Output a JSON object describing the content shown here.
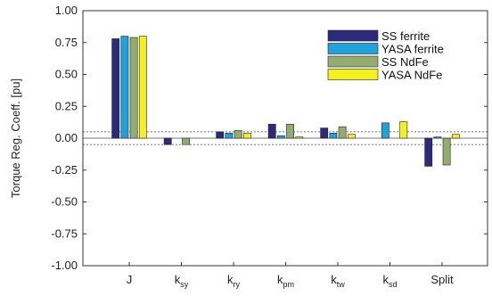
{
  "chart_data": {
    "type": "bar",
    "ylabel": "Torque Reg. Coeff. [pu]",
    "xlabel": "",
    "ylim": [
      -1.0,
      1.0
    ],
    "yticks": [
      "-1.00",
      "-0.75",
      "-0.50",
      "-0.25",
      "0.00",
      "0.25",
      "0.50",
      "0.75",
      "1.00"
    ],
    "categories": [
      {
        "base": "J",
        "sub": ""
      },
      {
        "base": "k",
        "sub": "sy"
      },
      {
        "base": "k",
        "sub": "ry"
      },
      {
        "base": "k",
        "sub": "pm"
      },
      {
        "base": "k",
        "sub": "tw"
      },
      {
        "base": "k",
        "sub": "sd"
      },
      {
        "base": "Split",
        "sub": ""
      }
    ],
    "reference_lines": [
      0.05,
      -0.05
    ],
    "grid": false,
    "legend_position": "top-right",
    "series": [
      {
        "name": "SS ferrite",
        "color": "#2b2a7d",
        "values": [
          0.78,
          -0.05,
          0.05,
          0.11,
          0.08,
          0.0,
          -0.22
        ]
      },
      {
        "name": "YASA ferrite",
        "color": "#1fa3dc",
        "values": [
          0.8,
          0.0,
          0.04,
          0.02,
          0.04,
          0.12,
          0.01
        ]
      },
      {
        "name": "SS NdFe",
        "color": "#93ad70",
        "values": [
          0.79,
          -0.05,
          0.06,
          0.11,
          0.09,
          0.0,
          -0.21
        ]
      },
      {
        "name": "YASA NdFe",
        "color": "#f4f01c",
        "values": [
          0.8,
          0.0,
          0.04,
          0.01,
          0.03,
          0.13,
          0.03
        ]
      }
    ]
  }
}
